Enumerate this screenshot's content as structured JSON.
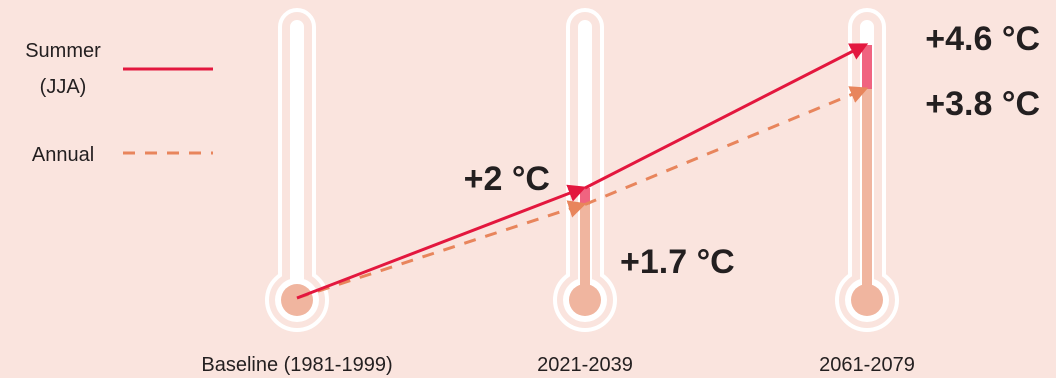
{
  "colors": {
    "background": "#fae4de",
    "thermometer_outline": "#ffffff",
    "mercury_base": "#f0b59f",
    "mercury_summer_increase": "#f06480",
    "summer_line": "#e3173e",
    "annual_line": "#e8855c"
  },
  "legend": {
    "summer_label_line1": "Summer",
    "summer_label_line2": "(JJA)",
    "annual_label": "Annual"
  },
  "chart_data": {
    "type": "line",
    "title": "",
    "xlabel": "",
    "ylabel": "",
    "unit": "°C",
    "categories": [
      "Baseline (1981-1999)",
      "2021-2039",
      "2061-2079"
    ],
    "series": [
      {
        "name": "Summer (JJA)",
        "style": "solid",
        "values": [
          0,
          2,
          4.6
        ],
        "labels": [
          "",
          "+2 °C",
          "+4.6 °C"
        ]
      },
      {
        "name": "Annual",
        "style": "dashed",
        "values": [
          0,
          1.7,
          3.8
        ],
        "labels": [
          "",
          "+1.7 °C",
          "+3.8 °C"
        ]
      }
    ],
    "grid": false,
    "legend_position": "top-left"
  }
}
